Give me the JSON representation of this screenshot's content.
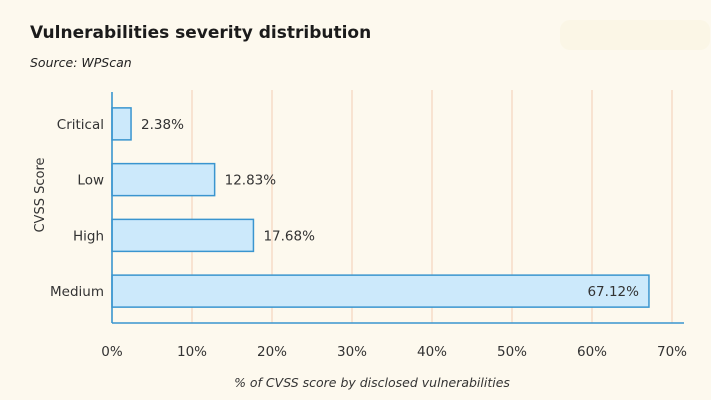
{
  "title": "Vulnerabilities severity distribution",
  "subtitle": "Source: WPScan",
  "colors": {
    "bar_fill": "#cce9fb",
    "bar_stroke": "#3a95cf",
    "grid": "#f7dcc7",
    "axis": "#3a95cf",
    "text": "#333333",
    "background": "#fdf9ee"
  },
  "chart_data": {
    "type": "bar",
    "orientation": "horizontal",
    "categories": [
      "Critical",
      "Low",
      "High",
      "Medium"
    ],
    "values": [
      2.38,
      12.83,
      17.68,
      67.12
    ],
    "value_labels": [
      "2.38%",
      "12.83%",
      "17.68%",
      "67.12%"
    ],
    "xlabel": "% of CVSS score by disclosed vulnerabilities",
    "ylabel": "CVSS Score",
    "xlim": [
      0,
      70
    ],
    "xticks": [
      0,
      10,
      20,
      30,
      40,
      50,
      60,
      70
    ],
    "xtick_labels": [
      "0%",
      "10%",
      "20%",
      "30%",
      "40%",
      "50%",
      "60%",
      "70%"
    ],
    "grid": "vertical"
  }
}
